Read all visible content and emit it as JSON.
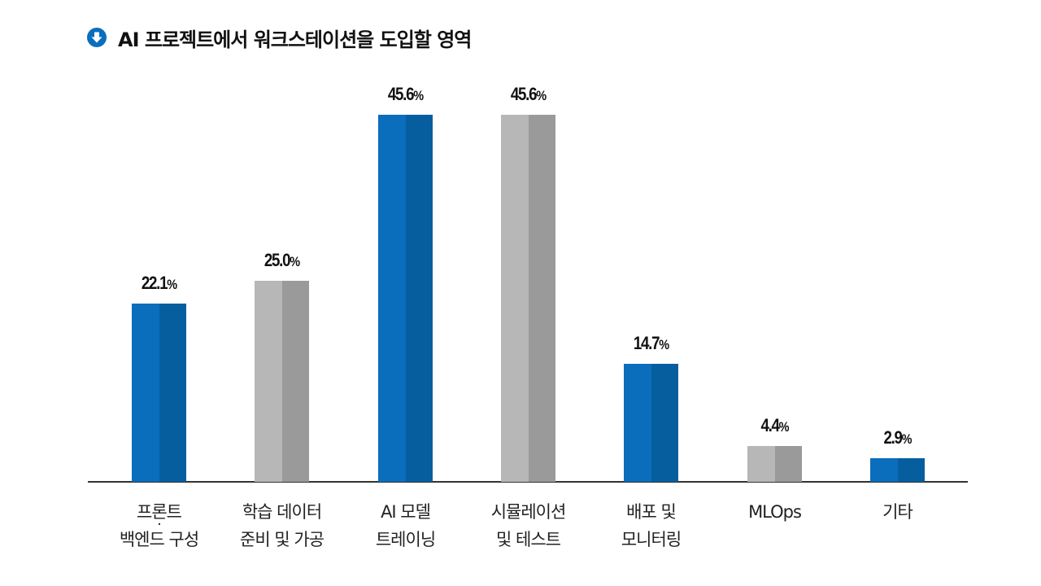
{
  "title": {
    "icon": "arrow-down-circle-icon",
    "text": "AI 프로젝트에서 워크스테이션을 도입할 영역",
    "icon_color": "#0a6ebd"
  },
  "colors": {
    "blue_light": "#0a6ebd",
    "blue_dark": "#075e9f",
    "gray_light": "#b7b7b7",
    "gray_dark": "#9a9a9a",
    "baseline": "#333333"
  },
  "chart_data": {
    "type": "bar",
    "title": "AI 프로젝트에서 워크스테이션을 도입할 영역",
    "xlabel": "",
    "ylabel": "",
    "unit": "%",
    "ylim": [
      0,
      50
    ],
    "grid": false,
    "legend": null,
    "categories": [
      "프론트·백엔드 구성",
      "학습 데이터 준비 및 가공",
      "AI 모델 트레이닝",
      "시뮬레이션 및 테스트",
      "배포 및 모니터링",
      "MLOps",
      "기타"
    ],
    "values": [
      22.1,
      25.0,
      45.6,
      45.6,
      14.7,
      4.4,
      2.9
    ],
    "bar_colors": [
      "blue",
      "gray",
      "blue",
      "gray",
      "blue",
      "gray",
      "blue"
    ]
  },
  "bars": [
    {
      "value_label": "22.1",
      "pct": "%",
      "line1": "프론트",
      "dot": "·",
      "line2": "백엔드 구성"
    },
    {
      "value_label": "25.0",
      "pct": "%",
      "line1": "학습 데이터",
      "line2": "준비 및 가공"
    },
    {
      "value_label": "45.6",
      "pct": "%",
      "line1": "AI 모델",
      "line2": "트레이닝"
    },
    {
      "value_label": "45.6",
      "pct": "%",
      "line1": "시뮬레이션",
      "line2": "및 테스트"
    },
    {
      "value_label": "14.7",
      "pct": "%",
      "line1": "배포 및",
      "line2": "모니터링"
    },
    {
      "value_label": "4.4",
      "pct": "%",
      "line1": "MLOps",
      "line2": ""
    },
    {
      "value_label": "2.9",
      "pct": "%",
      "line1": "기타",
      "line2": ""
    }
  ]
}
